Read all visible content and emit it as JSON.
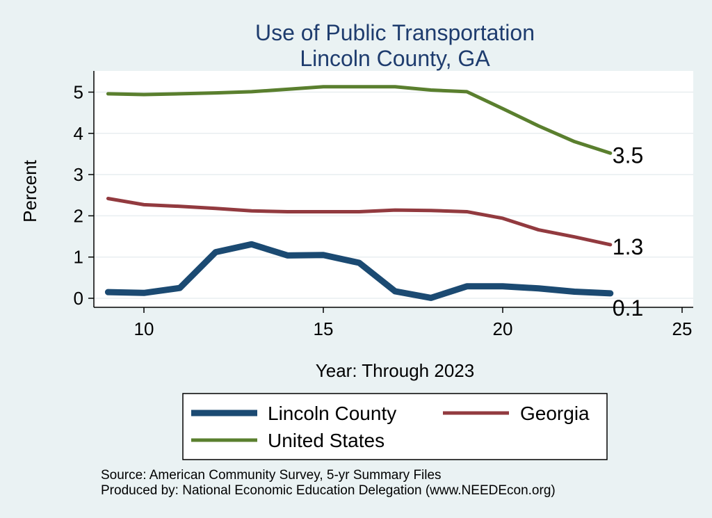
{
  "chart_data": {
    "type": "line",
    "title": "Use of Public Transportation",
    "subtitle": "Lincoln County, GA",
    "xlabel": "Year: Through 2023",
    "ylabel": "Percent",
    "xlim": [
      9,
      25
    ],
    "ylim": [
      0,
      5
    ],
    "x_ticks": [
      10,
      15,
      20,
      25
    ],
    "y_ticks": [
      0,
      1,
      2,
      3,
      4,
      5
    ],
    "grid": true,
    "legend_position": "bottom",
    "x": [
      9,
      10,
      11,
      12,
      13,
      14,
      15,
      16,
      17,
      18,
      19,
      20,
      21,
      22,
      23
    ],
    "series": [
      {
        "name": "Lincoln County",
        "color": "#1b4a72",
        "values": [
          0.15,
          0.13,
          0.25,
          1.12,
          1.31,
          1.04,
          1.05,
          0.86,
          0.17,
          0.01,
          0.29,
          0.29,
          0.24,
          0.16,
          0.12
        ],
        "end_label": "0.1"
      },
      {
        "name": "Georgia",
        "color": "#923a3f",
        "values": [
          2.42,
          2.27,
          2.23,
          2.18,
          2.12,
          2.1,
          2.1,
          2.1,
          2.14,
          2.13,
          2.1,
          1.94,
          1.66,
          1.49,
          1.3
        ],
        "end_label": "1.3"
      },
      {
        "name": "United States",
        "color": "#5a7f2e",
        "values": [
          4.96,
          4.94,
          4.96,
          4.98,
          5.01,
          5.07,
          5.13,
          5.13,
          5.13,
          5.05,
          5.01,
          4.6,
          4.18,
          3.8,
          3.52
        ],
        "end_label": "3.5"
      }
    ]
  },
  "notes": {
    "source": "Source: American Community Survey, 5-yr Summary Files",
    "produced_by": "Produced by: National Economic Education Delegation (www.NEEDEcon.org)"
  }
}
